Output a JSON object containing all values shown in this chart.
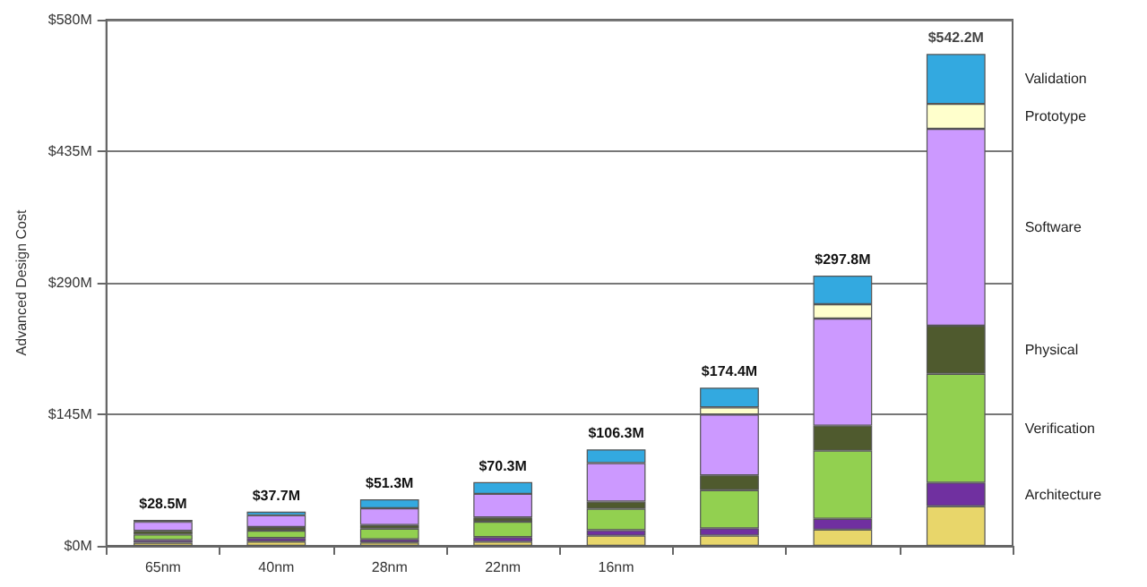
{
  "chart_data": {
    "type": "bar",
    "stacked": true,
    "ylabel": "Advanced Design Cost",
    "categories": [
      "65nm",
      "40nm",
      "28nm",
      "22nm",
      "16nm",
      null,
      null,
      null
    ],
    "series": [
      {
        "color": "#e8d66a",
        "values": [
          3.5,
          4.7,
          3.7,
          4.6,
          11.2,
          11.4,
          17.9,
          43.7
        ]
      },
      {
        "name": "Architecture",
        "color": "#7030a0",
        "values": [
          3,
          4,
          3.5,
          5,
          6,
          8,
          12,
          26
        ]
      },
      {
        "name": "Verification",
        "color": "#92d050",
        "values": [
          6,
          8,
          11.8,
          17,
          23.6,
          42,
          75,
          120
        ]
      },
      {
        "name": "Physical",
        "color": "#4f5a2e",
        "values": [
          4,
          4,
          4,
          4.7,
          8,
          16.4,
          27.6,
          53
        ]
      },
      {
        "name": "Software",
        "color": "#cc99ff",
        "values": [
          10,
          13,
          18.4,
          26,
          42.5,
          67,
          118,
          217
        ]
      },
      {
        "name": "Prototype",
        "color": "#ffffcc",
        "values": [
          null,
          null,
          null,
          null,
          null,
          7.9,
          15.8,
          27.5
        ]
      },
      {
        "name": "Validation",
        "color": "#33a9e0",
        "values": [
          2,
          4,
          9.9,
          13,
          15,
          21.7,
          31.5,
          55
        ]
      }
    ],
    "totals": [
      "$28.5M",
      "$37.7M",
      "$51.3M",
      "$70.3M",
      "$106.3M",
      "$174.4M",
      "$297.8M",
      "$542.2M"
    ],
    "ylim": [
      0,
      580
    ],
    "yticks": [
      {
        "value": 0,
        "label": "$0M"
      },
      {
        "value": 145,
        "label": "$145M"
      },
      {
        "value": 290,
        "label": "$290M"
      },
      {
        "value": 435,
        "label": "$435M"
      },
      {
        "value": 580,
        "label": "$580M"
      }
    ],
    "grid": "y",
    "legend": false
  }
}
